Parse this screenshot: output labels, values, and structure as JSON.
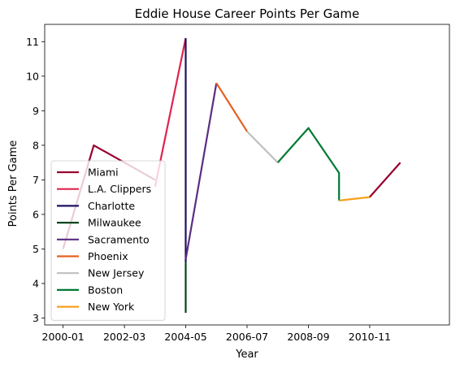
{
  "chart_data": {
    "type": "line",
    "title": "Eddie House Career Points Per Game",
    "xlabel": "Year",
    "ylabel": "Points Per Game",
    "x_tick_labels": [
      "2000-01",
      "2002-03",
      "2004-05",
      "2006-07",
      "2008-09",
      "2010-11"
    ],
    "y_ticks": [
      3,
      4,
      5,
      6,
      7,
      8,
      9,
      10,
      11
    ],
    "xlim": [
      -0.6,
      12.6
    ],
    "ylim": [
      2.8,
      11.5
    ],
    "legend_position": "lower-left",
    "series": [
      {
        "name": "Miami",
        "color": "#98002E",
        "points": [
          [
            0,
            5.0
          ],
          [
            1,
            8.0
          ],
          [
            2,
            7.5
          ],
          [
            3,
            7.0
          ]
        ]
      },
      {
        "name": "L.A. Clippers",
        "color": "#E0234E",
        "points": [
          [
            3,
            6.8
          ],
          [
            4,
            11.1
          ]
        ]
      },
      {
        "name": "Charlotte",
        "color": "#1D1160",
        "points": [
          [
            4,
            11.1
          ],
          [
            4,
            4.6
          ]
        ]
      },
      {
        "name": "Milwaukee",
        "color": "#00471B",
        "points": [
          [
            4,
            4.6
          ],
          [
            4,
            3.15
          ]
        ]
      },
      {
        "name": "Sacramento",
        "color": "#5A2D81",
        "points": [
          [
            4,
            4.7
          ],
          [
            5,
            9.8
          ]
        ]
      },
      {
        "name": "Phoenix",
        "color": "#E56020",
        "points": [
          [
            5,
            9.8
          ],
          [
            6,
            8.4
          ]
        ]
      },
      {
        "name": "New Jersey",
        "color": "#C0C0C0",
        "points": [
          [
            6,
            8.4
          ],
          [
            7,
            7.5
          ]
        ]
      },
      {
        "name": "Boston",
        "color": "#007A33",
        "points": [
          [
            7,
            7.5
          ],
          [
            8,
            8.5
          ],
          [
            9,
            7.2
          ],
          [
            9,
            6.4
          ]
        ]
      },
      {
        "name": "New York",
        "color": "#F9A01B",
        "points": [
          [
            9,
            6.4
          ],
          [
            10,
            6.5
          ]
        ]
      },
      {
        "name": "",
        "color": "#98002E",
        "points": [
          [
            10,
            6.5
          ],
          [
            11,
            7.5
          ]
        ]
      }
    ]
  }
}
